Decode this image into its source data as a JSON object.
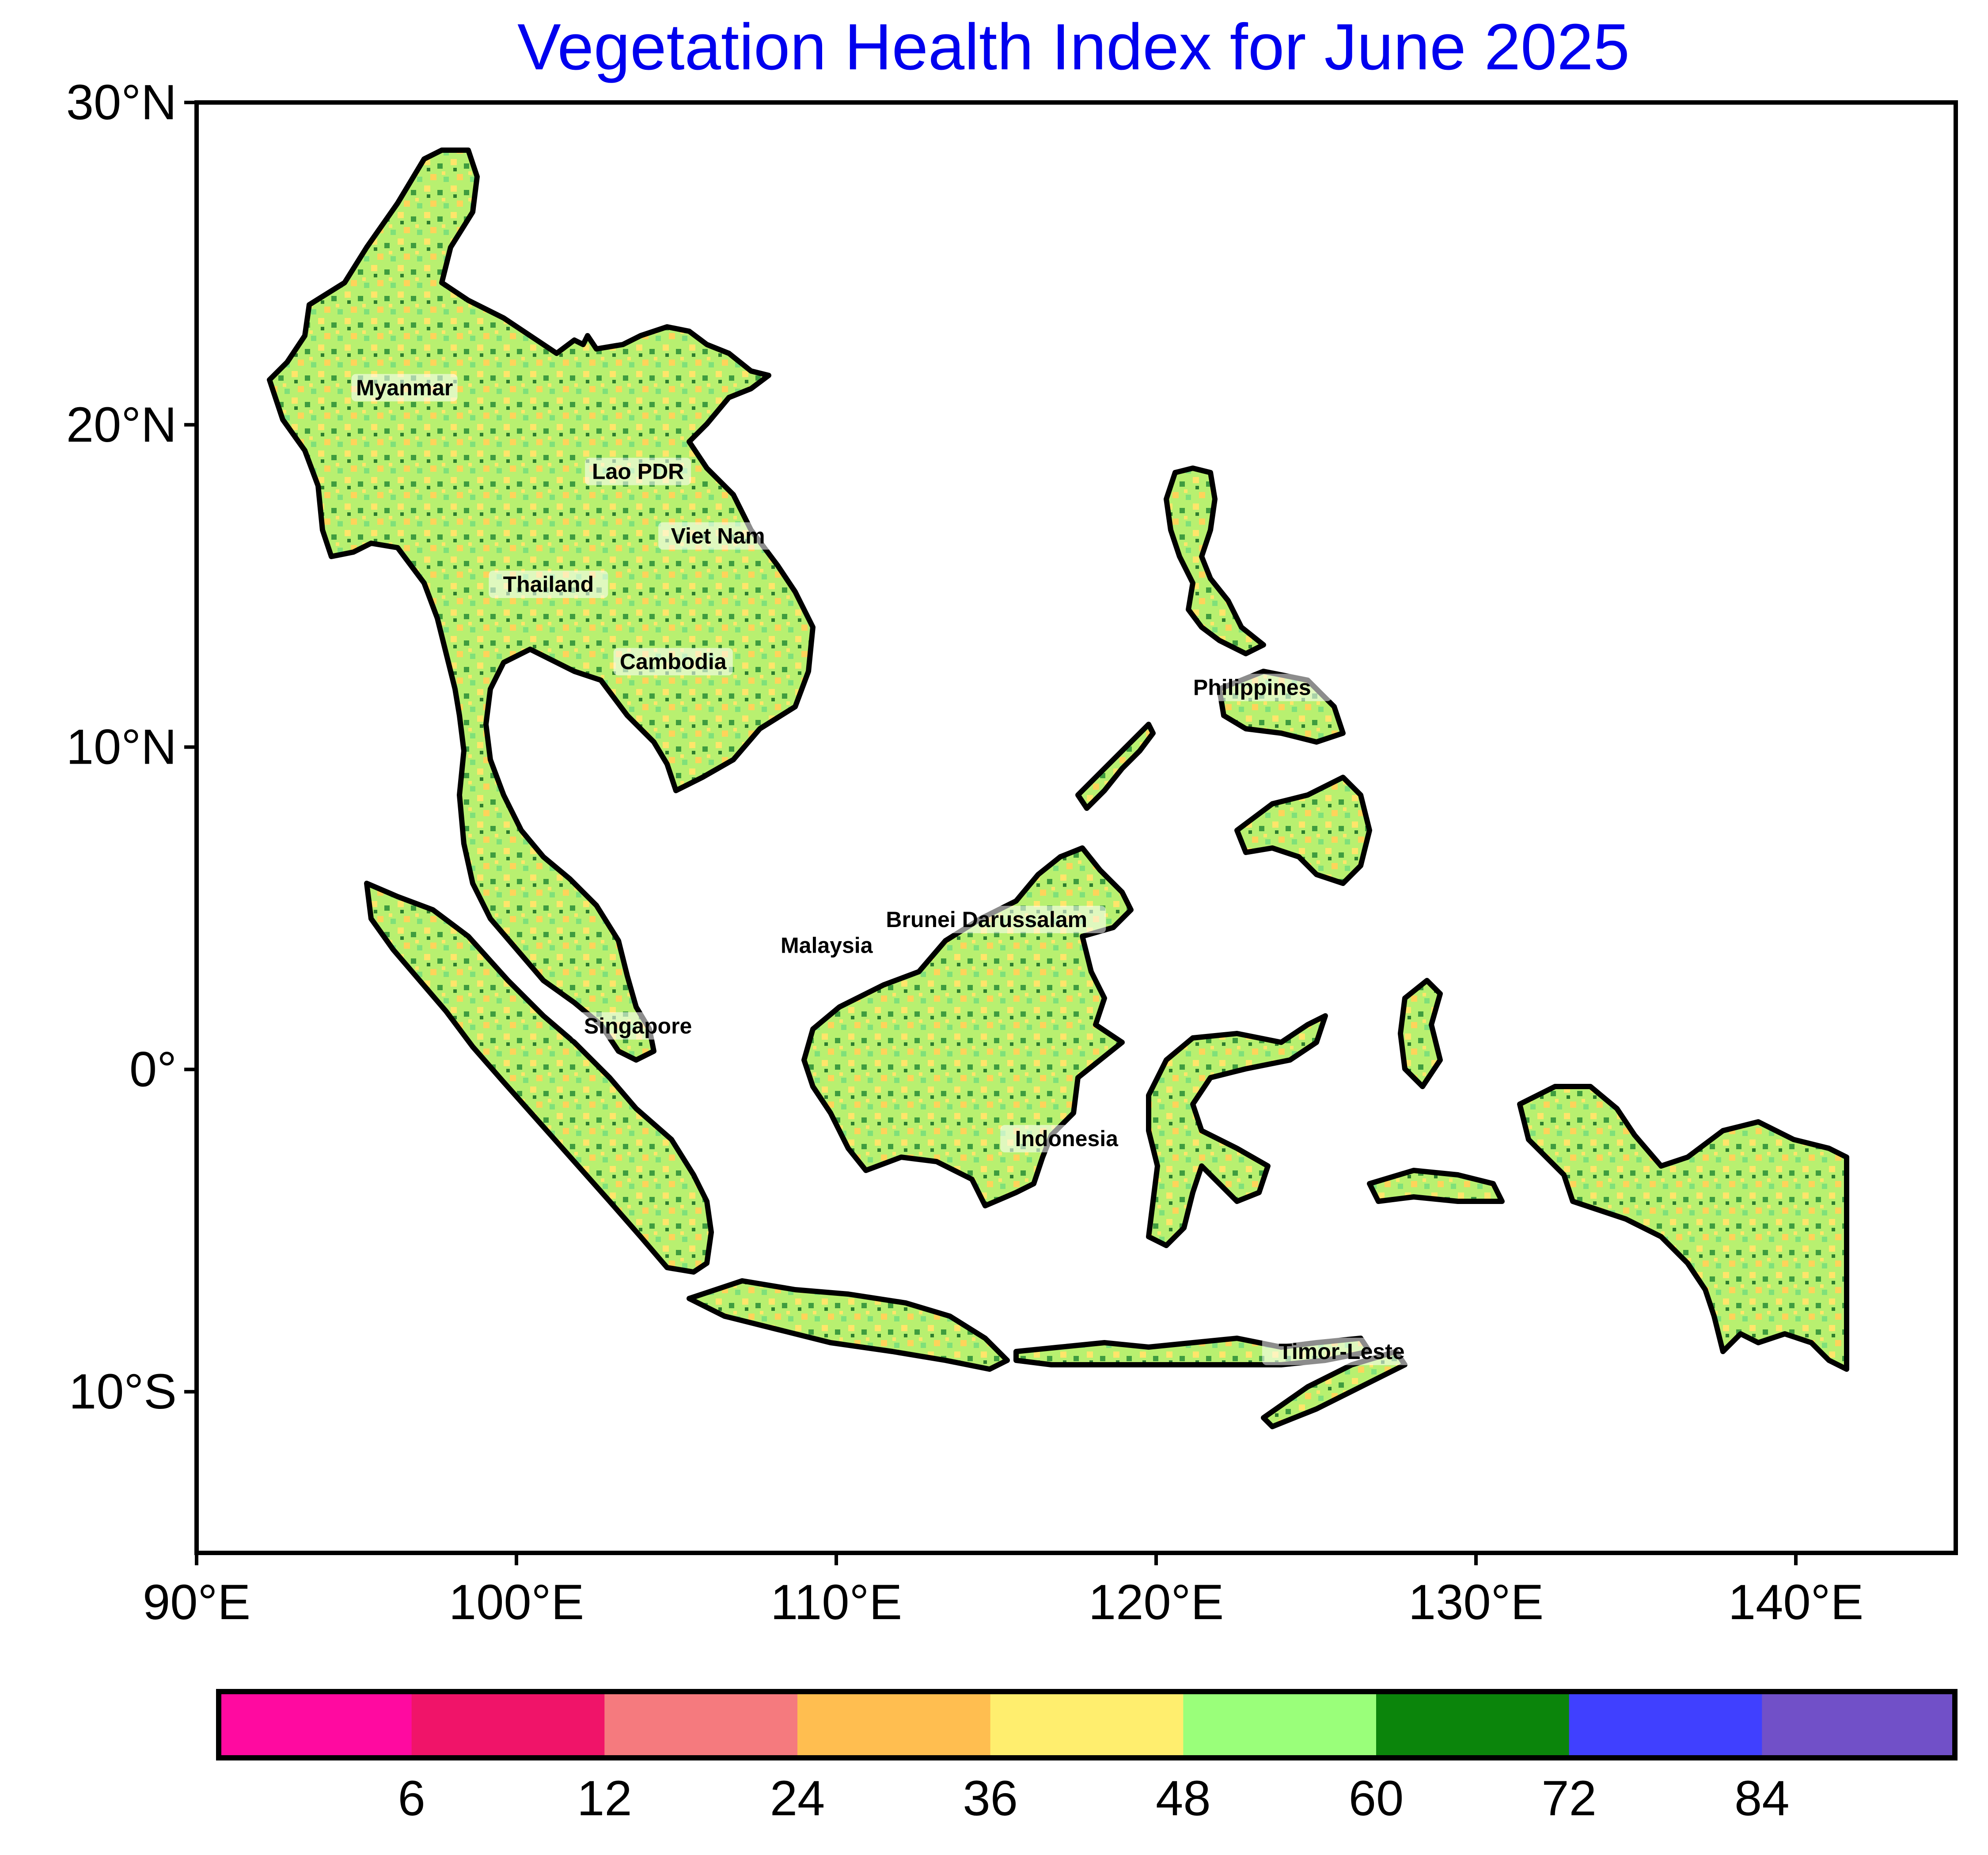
{
  "title": "Vegetation Health Index for June 2025",
  "map": {
    "extent": {
      "lon_min": 90,
      "lon_max": 145,
      "lat_min": -15,
      "lat_max": 30
    },
    "lat_ticks": [
      {
        "value": 30,
        "label": "30°N"
      },
      {
        "value": 20,
        "label": "20°N"
      },
      {
        "value": 10,
        "label": "10°N"
      },
      {
        "value": 0,
        "label": "0°"
      },
      {
        "value": -10,
        "label": "10°S"
      }
    ],
    "lon_ticks": [
      {
        "value": 90,
        "label": "90°E"
      },
      {
        "value": 100,
        "label": "100°E"
      },
      {
        "value": 110,
        "label": "110°E"
      },
      {
        "value": 120,
        "label": "120°E"
      },
      {
        "value": 130,
        "label": "130°E"
      },
      {
        "value": 140,
        "label": "140°E"
      }
    ],
    "countries": [
      {
        "name": "Myanmar",
        "lon": 96.5,
        "lat": 21.0
      },
      {
        "name": "Lao PDR",
        "lon": 103.8,
        "lat": 18.4
      },
      {
        "name": "Viet Nam",
        "lon": 106.3,
        "lat": 16.4
      },
      {
        "name": "Thailand",
        "lon": 101.0,
        "lat": 14.9
      },
      {
        "name": "Cambodia",
        "lon": 104.9,
        "lat": 12.5
      },
      {
        "name": "Philippines",
        "lon": 123.0,
        "lat": 11.7
      },
      {
        "name": "Brunei Darussalam",
        "lon": 114.7,
        "lat": 4.5
      },
      {
        "name": "Malaysia",
        "lon": 109.7,
        "lat": 3.7
      },
      {
        "name": "Singapore",
        "lon": 103.8,
        "lat": 1.2
      },
      {
        "name": "Indonesia",
        "lon": 117.2,
        "lat": -2.3
      },
      {
        "name": "Timor-Leste",
        "lon": 125.8,
        "lat": -8.9
      }
    ]
  },
  "legend": {
    "colors": [
      "#ff0aa0",
      "#f01469",
      "#f57a7e",
      "#ffbe50",
      "#ffee6e",
      "#9aff7a",
      "#0b850b",
      "#4040ff",
      "#7150c8"
    ],
    "tick_labels": [
      "6",
      "12",
      "24",
      "36",
      "48",
      "60",
      "72",
      "84"
    ]
  },
  "palette": {
    "land_base": "#c9f07a",
    "dry": "#ffd35a",
    "wet": "#4aa84a",
    "outline": "#000000"
  }
}
